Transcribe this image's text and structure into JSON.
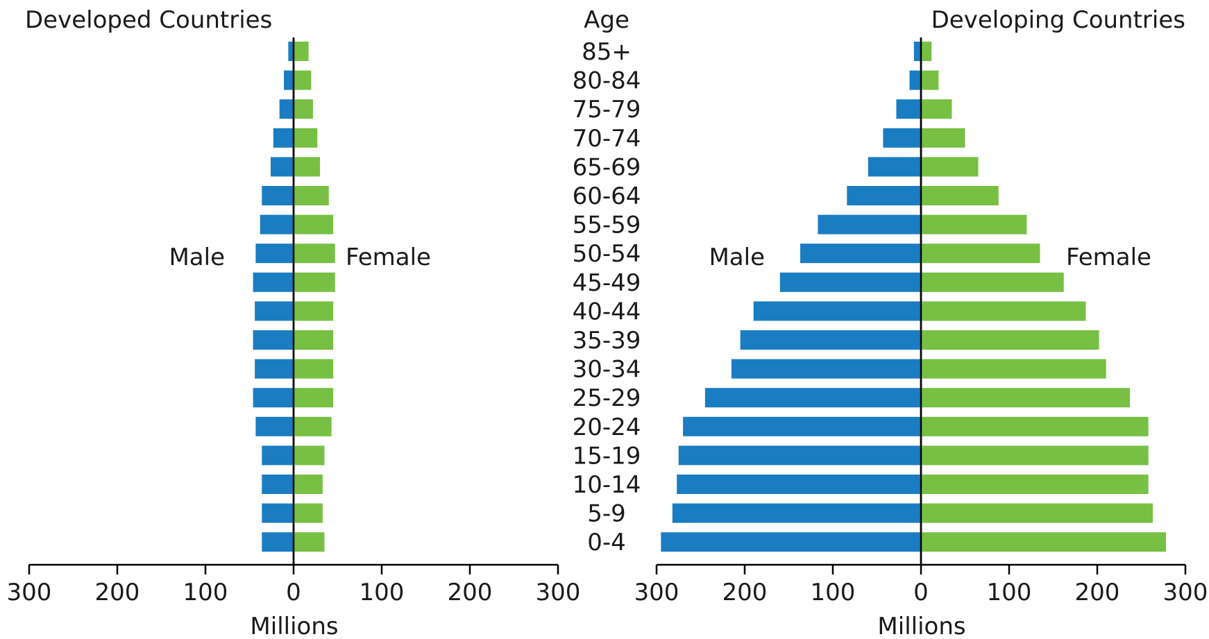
{
  "axis_title": "Age",
  "chart_data": [
    {
      "type": "bar",
      "orientation": "horizontal-pyramid",
      "title": "Developed Countries",
      "xlabel": "Millions",
      "xlim": [
        -300,
        300
      ],
      "x_ticks": [
        -300,
        -200,
        -100,
        0,
        100,
        200,
        300
      ],
      "x_tick_labels": [
        "300",
        "200",
        "100",
        "0",
        "100",
        "200",
        "300"
      ],
      "categories": [
        "85+",
        "80-84",
        "75-79",
        "70-74",
        "65-69",
        "60-64",
        "55-59",
        "50-54",
        "45-49",
        "40-44",
        "35-39",
        "30-34",
        "25-29",
        "20-24",
        "15-19",
        "10-14",
        "5-9",
        "0-4"
      ],
      "series": [
        {
          "name": "Male",
          "color": "#1a7dc2",
          "values": [
            6,
            11,
            16,
            23,
            26,
            36,
            38,
            43,
            46,
            44,
            46,
            44,
            46,
            43,
            36,
            36,
            36,
            36
          ]
        },
        {
          "name": "Female",
          "color": "#77c043",
          "values": [
            17,
            20,
            22,
            27,
            30,
            40,
            45,
            47,
            47,
            45,
            45,
            45,
            45,
            43,
            35,
            33,
            33,
            35
          ]
        }
      ]
    },
    {
      "type": "bar",
      "orientation": "horizontal-pyramid",
      "title": "Developing Countries",
      "xlabel": "Millions",
      "xlim": [
        -300,
        300
      ],
      "x_ticks": [
        -300,
        -200,
        -100,
        0,
        100,
        200,
        300
      ],
      "x_tick_labels": [
        "300",
        "200",
        "100",
        "0",
        "100",
        "200",
        "300"
      ],
      "categories": [
        "85+",
        "80-84",
        "75-79",
        "70-74",
        "65-69",
        "60-64",
        "55-59",
        "50-54",
        "45-49",
        "40-44",
        "35-39",
        "30-34",
        "25-29",
        "20-24",
        "15-19",
        "10-14",
        "5-9",
        "0-4"
      ],
      "series": [
        {
          "name": "Male",
          "color": "#1a7dc2",
          "values": [
            8,
            13,
            28,
            43,
            60,
            84,
            117,
            137,
            160,
            190,
            205,
            215,
            245,
            270,
            275,
            277,
            282,
            295
          ]
        },
        {
          "name": "Female",
          "color": "#77c043",
          "values": [
            12,
            20,
            35,
            50,
            65,
            88,
            120,
            135,
            162,
            187,
            202,
            210,
            237,
            258,
            258,
            258,
            263,
            278
          ]
        }
      ]
    }
  ]
}
